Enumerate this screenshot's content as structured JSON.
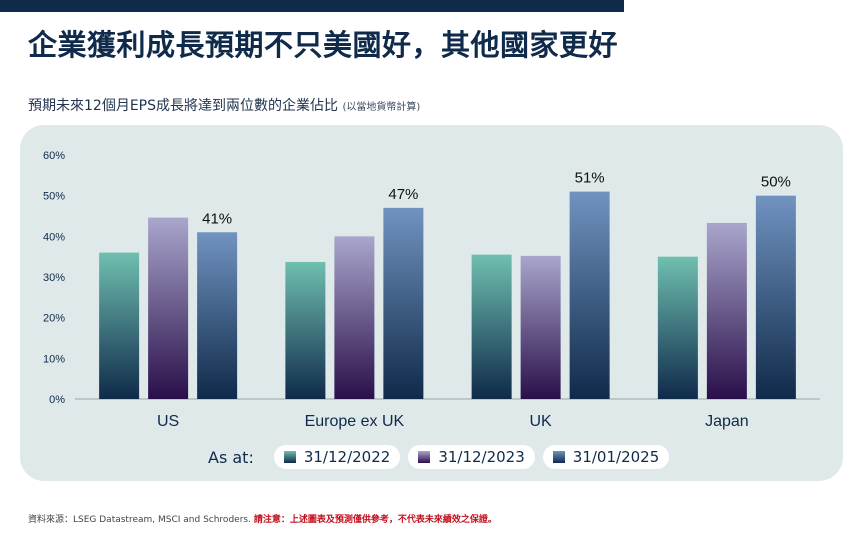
{
  "header": {
    "title": "企業獲利成長預期不只美國好，其他國家更好",
    "subtitle": "預期未來12個月EPS成長將達到兩位數的企業佔比",
    "subtitle_note": "(以當地貨幣計算)"
  },
  "legend": {
    "prefix": "As at:",
    "items": [
      "31/12/2022",
      "31/12/2023",
      "31/01/2025"
    ]
  },
  "footer": {
    "source": "資料來源：LSEG Datastream, MSCI and Schroders.",
    "warning": "請注意：上述圖表及預測僅供參考，不代表未來績效之保證。"
  },
  "colors": {
    "series_top": [
      "#6fbfb0",
      "#a9a6cc",
      "#7193c0"
    ],
    "series_bottom": [
      "#0f2a4a",
      "#2a0f4a",
      "#0f2a4a"
    ],
    "axis_text": "#0f2a4a",
    "panel_bg": "#dfe9ea"
  },
  "chart_data": {
    "type": "bar",
    "categories": [
      "US",
      "Europe ex UK",
      "UK",
      "Japan"
    ],
    "series": [
      {
        "name": "31/12/2022",
        "values": [
          36,
          33.7,
          35.5,
          35
        ]
      },
      {
        "name": "31/12/2023",
        "values": [
          44.6,
          40,
          35.2,
          43.3
        ]
      },
      {
        "name": "31/01/2025",
        "values": [
          41,
          47,
          51,
          50
        ]
      }
    ],
    "labeled_series": 2,
    "labels": [
      "41%",
      "47%",
      "51%",
      "50%"
    ],
    "ylim": [
      0,
      60
    ],
    "yticks": [
      "0%",
      "10%",
      "20%",
      "30%",
      "40%",
      "50%",
      "60%"
    ],
    "grid": false,
    "legend_position": "bottom"
  }
}
